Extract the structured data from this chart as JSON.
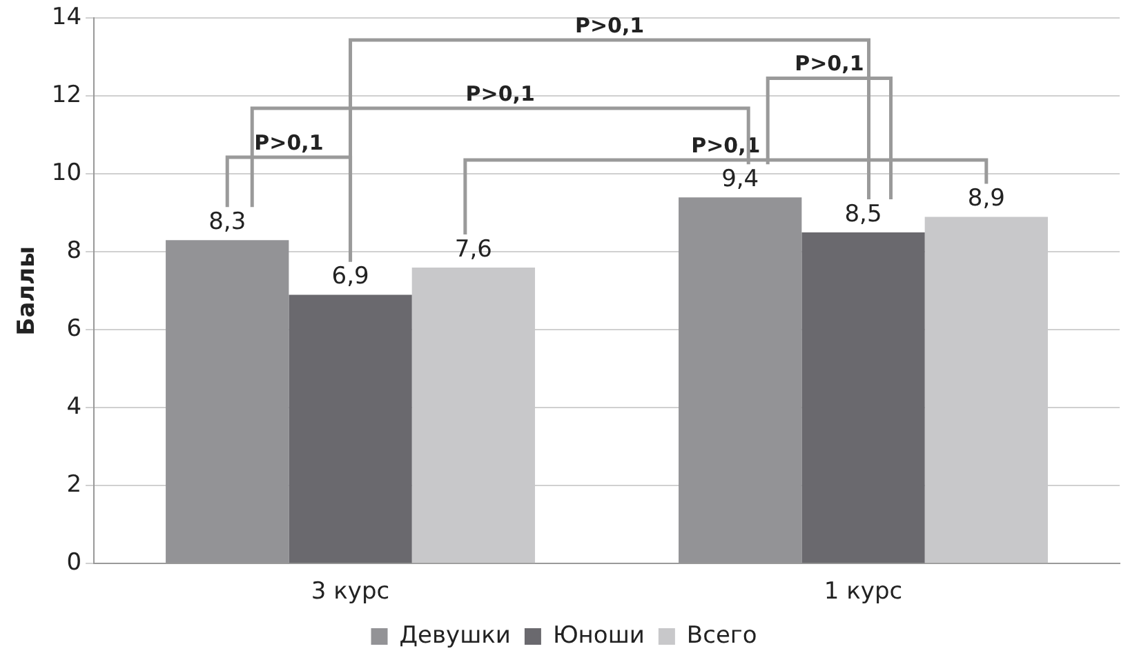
{
  "chart_data": {
    "type": "bar",
    "ylabel": "Баллы",
    "categories": [
      "3 курс",
      "1 курс"
    ],
    "series": [
      {
        "name": "Девушки",
        "color": "#939396",
        "values": [
          8.3,
          9.4
        ]
      },
      {
        "name": "Юноши",
        "color": "#6a696e",
        "values": [
          6.9,
          8.5
        ]
      },
      {
        "name": "Всего",
        "color": "#c8c8ca",
        "values": [
          7.6,
          8.9
        ]
      }
    ],
    "value_labels": [
      [
        "8,3",
        "9,4"
      ],
      [
        "6,9",
        "8,5"
      ],
      [
        "7,6",
        "8,9"
      ]
    ],
    "annotations": [
      "P>0,1",
      "P>0,1",
      "P>0,1",
      "P>0,1",
      "P>0,1"
    ],
    "ylim": [
      0,
      14
    ],
    "yticks": [
      0,
      2,
      4,
      6,
      8,
      10,
      12,
      14
    ],
    "grid": "y",
    "legend": "bottom"
  }
}
